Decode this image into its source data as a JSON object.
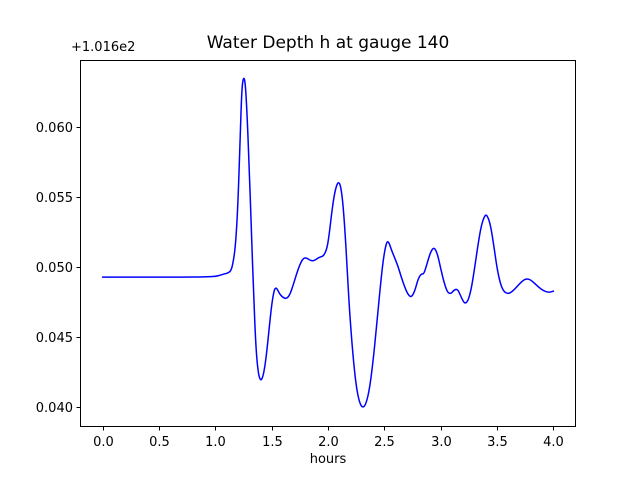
{
  "chart_data": {
    "type": "line",
    "title": "Water Depth h at gauge 140",
    "xlabel": "hours",
    "ylabel": "",
    "y_offset_text": "+1.016e2",
    "y_offset_value": 101.6,
    "grid": false,
    "legend": null,
    "line_color": "#0000ff",
    "line_width": 1.5,
    "frame_color": "#000000",
    "xlim": [
      -0.2,
      4.2
    ],
    "ylim": [
      0.0386,
      0.0648
    ],
    "xticks": [
      0.0,
      0.5,
      1.0,
      1.5,
      2.0,
      2.5,
      3.0,
      3.5,
      4.0
    ],
    "xtick_labels": [
      "0.0",
      "0.5",
      "1.0",
      "1.5",
      "2.0",
      "2.5",
      "3.0",
      "3.5",
      "4.0"
    ],
    "yticks": [
      0.04,
      0.045,
      0.05,
      0.055,
      0.06
    ],
    "ytick_labels": [
      "0.040",
      "0.045",
      "0.050",
      "0.055",
      "0.060"
    ],
    "series": [
      {
        "name": "h",
        "x": [
          0.0,
          0.15,
          0.3,
          0.45,
          0.6,
          0.75,
          0.85,
          0.95,
          1.0,
          1.05,
          1.08,
          1.11,
          1.14,
          1.16,
          1.18,
          1.2,
          1.22,
          1.235,
          1.25,
          1.265,
          1.28,
          1.3,
          1.32,
          1.34,
          1.36,
          1.38,
          1.4,
          1.42,
          1.44,
          1.46,
          1.48,
          1.5,
          1.52,
          1.535,
          1.55,
          1.57,
          1.6,
          1.63,
          1.66,
          1.69,
          1.72,
          1.75,
          1.78,
          1.81,
          1.84,
          1.87,
          1.9,
          1.93,
          1.96,
          1.99,
          2.01,
          2.03,
          2.05,
          2.07,
          2.09,
          2.11,
          2.13,
          2.15,
          2.17,
          2.19,
          2.22,
          2.25,
          2.28,
          2.31,
          2.34,
          2.37,
          2.4,
          2.43,
          2.46,
          2.49,
          2.52,
          2.54,
          2.56,
          2.59,
          2.62,
          2.65,
          2.68,
          2.71,
          2.74,
          2.77,
          2.8,
          2.83,
          2.85,
          2.88,
          2.91,
          2.94,
          2.97,
          3.0,
          3.03,
          3.06,
          3.09,
          3.12,
          3.15,
          3.18,
          3.21,
          3.24,
          3.27,
          3.3,
          3.33,
          3.36,
          3.39,
          3.41,
          3.44,
          3.47,
          3.5,
          3.53,
          3.56,
          3.6,
          3.64,
          3.68,
          3.72,
          3.76,
          3.8,
          3.84,
          3.88,
          3.92,
          3.96,
          4.0
        ],
        "y": [
          0.0493,
          0.0493,
          0.0493,
          0.0493,
          0.0493,
          0.0493,
          0.04931,
          0.04933,
          0.04935,
          0.04945,
          0.04953,
          0.04958,
          0.04975,
          0.0504,
          0.0516,
          0.0543,
          0.059,
          0.0627,
          0.0636,
          0.0633,
          0.0613,
          0.0574,
          0.0527,
          0.0481,
          0.0443,
          0.0425,
          0.0419,
          0.0421,
          0.0429,
          0.0442,
          0.0458,
          0.0473,
          0.0483,
          0.04855,
          0.04845,
          0.0481,
          0.04785,
          0.04775,
          0.048,
          0.0487,
          0.0495,
          0.0502,
          0.05065,
          0.05068,
          0.0505,
          0.05045,
          0.0506,
          0.05075,
          0.0508,
          0.0513,
          0.0523,
          0.0537,
          0.0549,
          0.0557,
          0.0561,
          0.0559,
          0.0548,
          0.0527,
          0.0499,
          0.047,
          0.0438,
          0.0415,
          0.0403,
          0.03995,
          0.0403,
          0.0414,
          0.0433,
          0.0457,
          0.0483,
          0.0506,
          0.05185,
          0.0518,
          0.0513,
          0.0507,
          0.0501,
          0.0493,
          0.0486,
          0.04805,
          0.04785,
          0.0483,
          0.0492,
          0.04955,
          0.0495,
          0.0503,
          0.0511,
          0.05145,
          0.051,
          0.0499,
          0.0489,
          0.0482,
          0.0481,
          0.0484,
          0.04845,
          0.0479,
          0.0474,
          0.04755,
          0.0484,
          0.0499,
          0.0516,
          0.053,
          0.0537,
          0.05375,
          0.0531,
          0.0516,
          0.0499,
          0.0488,
          0.04825,
          0.0481,
          0.0483,
          0.04865,
          0.049,
          0.0492,
          0.0491,
          0.0488,
          0.0485,
          0.0483,
          0.0482,
          0.0483
        ]
      }
    ]
  }
}
